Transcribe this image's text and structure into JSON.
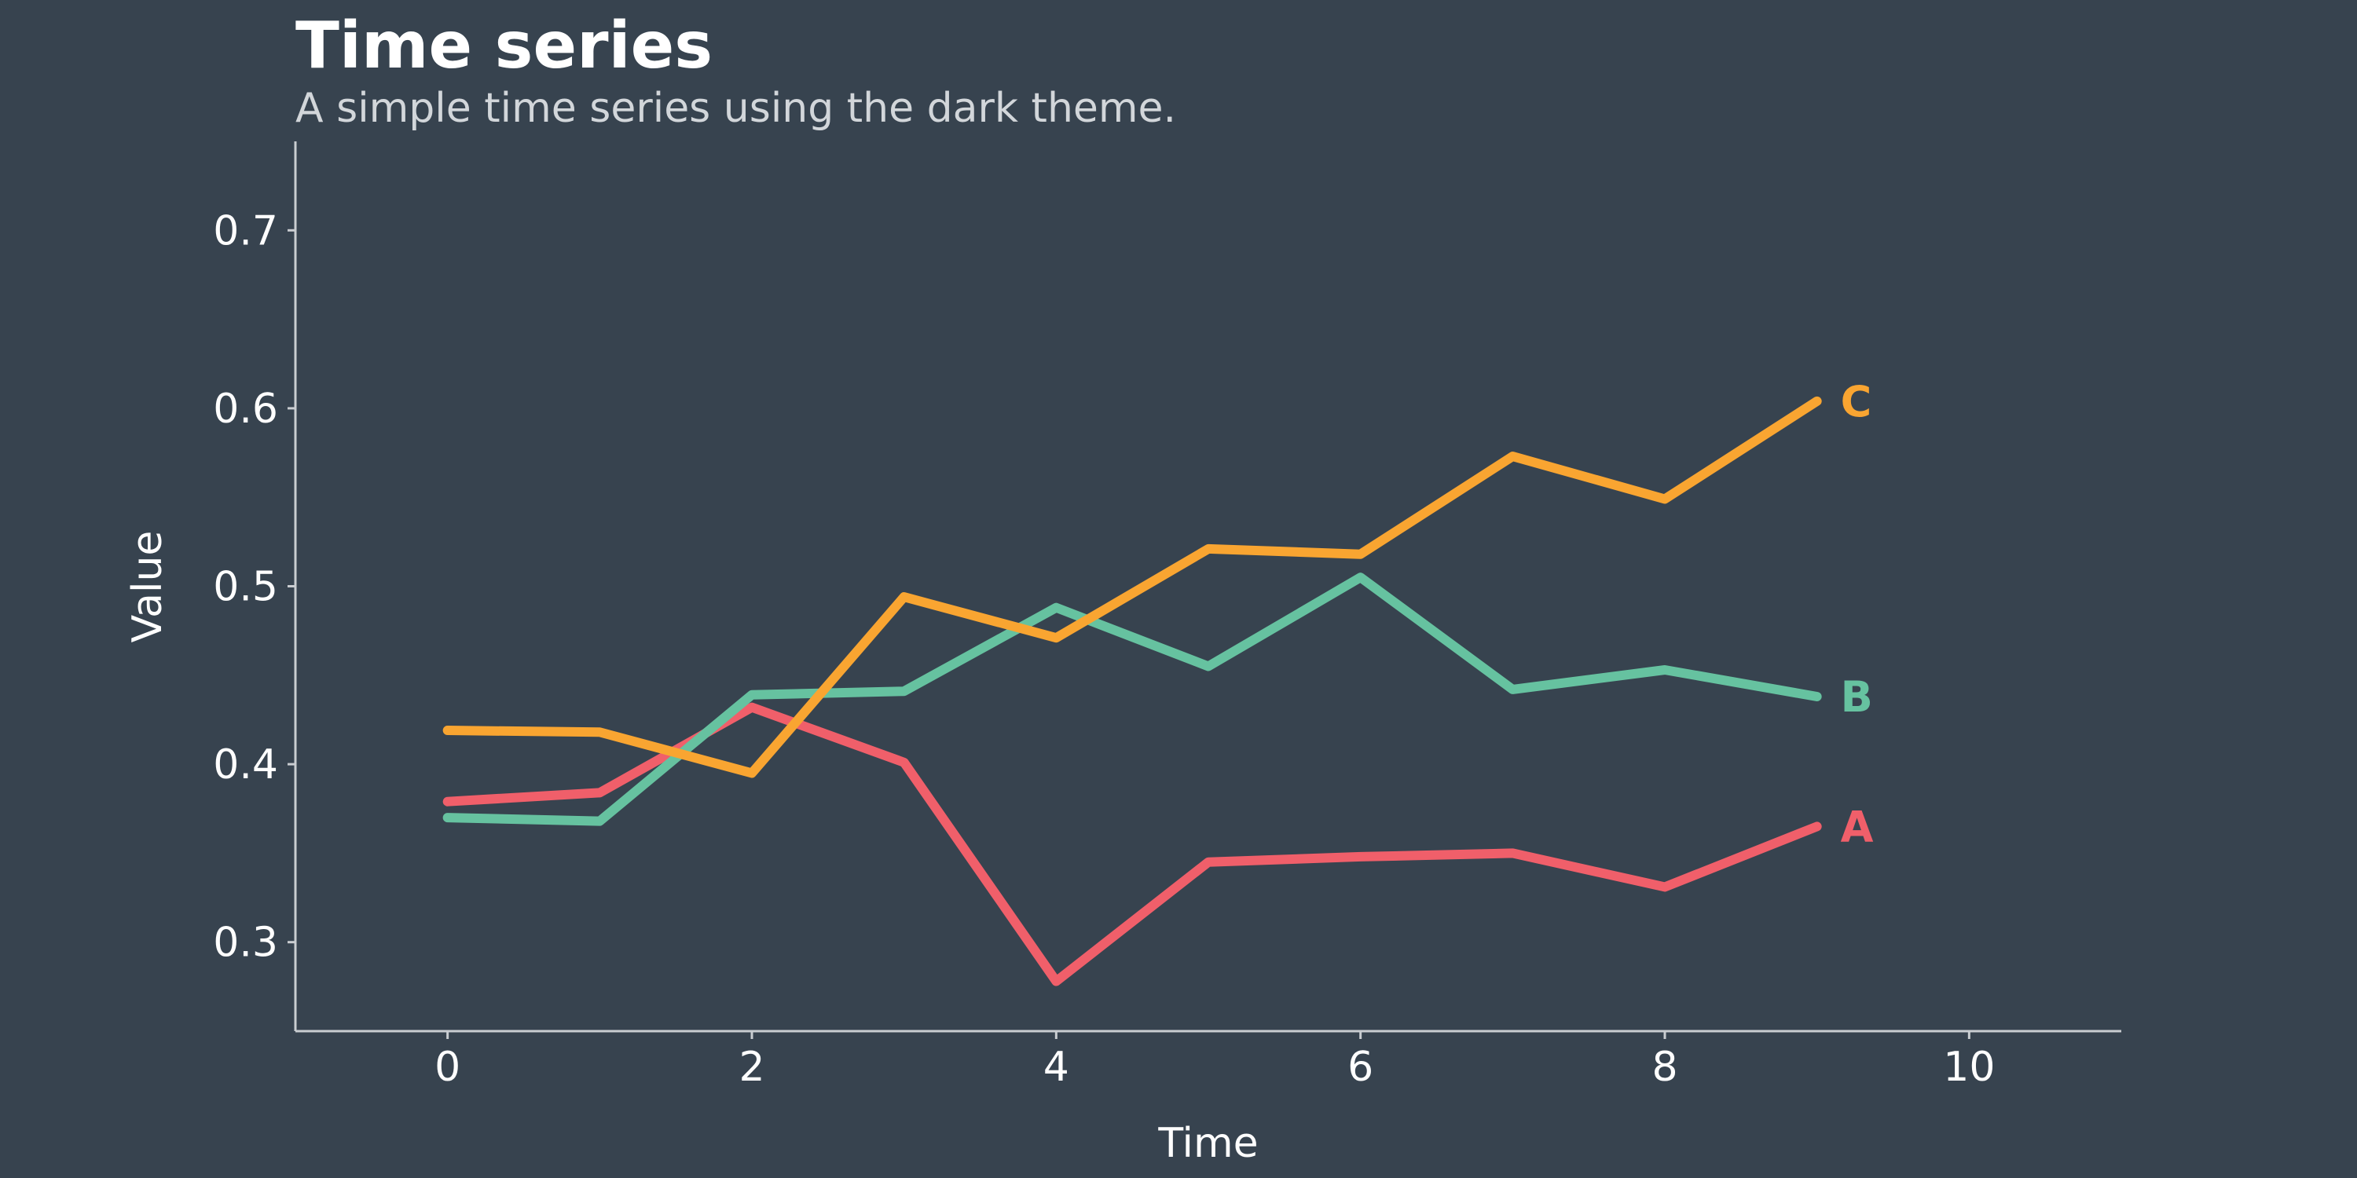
{
  "chart_data": {
    "type": "line",
    "title": "Time series",
    "subtitle": "A simple time series using the dark theme.",
    "xlabel": "Time",
    "ylabel": "Value",
    "xlim": [
      -1,
      11
    ],
    "ylim": [
      0.25,
      0.75
    ],
    "x_ticks": [
      "0",
      "2",
      "4",
      "6",
      "8",
      "10"
    ],
    "y_ticks": [
      "0.3",
      "0.4",
      "0.5",
      "0.6",
      "0.7"
    ],
    "grid": false,
    "legend": "direct labels at line ends",
    "x": [
      0,
      1,
      2,
      3,
      4,
      5,
      6,
      7,
      8,
      9
    ],
    "series": [
      {
        "name": "A",
        "color": "#f05f6a",
        "values": [
          0.379,
          0.384,
          0.432,
          0.401,
          0.278,
          0.345,
          0.348,
          0.35,
          0.331,
          0.365
        ]
      },
      {
        "name": "B",
        "color": "#66c2a0",
        "values": [
          0.37,
          0.368,
          0.439,
          0.441,
          0.488,
          0.455,
          0.505,
          0.442,
          0.453,
          0.438
        ]
      },
      {
        "name": "C",
        "color": "#f9a531",
        "values": [
          0.419,
          0.418,
          0.395,
          0.494,
          0.471,
          0.521,
          0.518,
          0.573,
          0.549,
          0.604
        ]
      }
    ]
  }
}
